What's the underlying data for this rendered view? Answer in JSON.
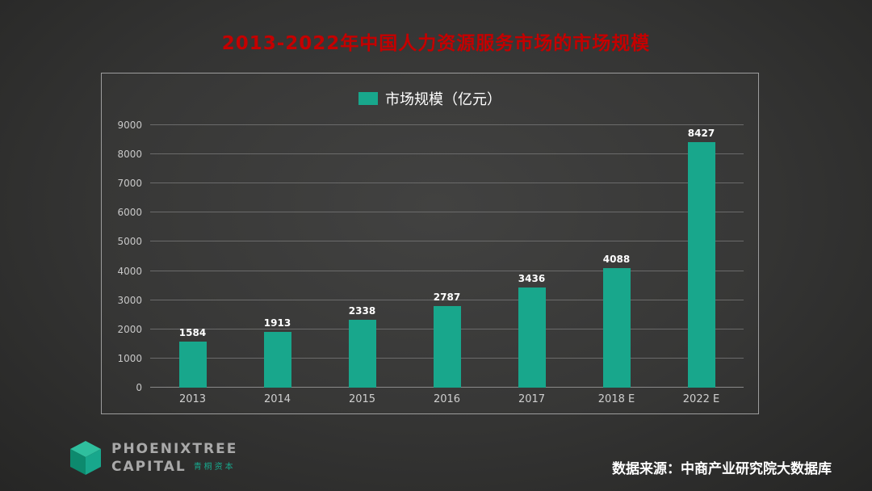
{
  "page": {
    "title": "2013-2022年中国人力资源服务市场的市场规模",
    "source": "数据来源：中商产业研究院大数据库"
  },
  "logo": {
    "line1": "PHOENIXTREE",
    "line2": "CAPITAL",
    "cn": "青桐资本"
  },
  "colors": {
    "title": "#c40000",
    "bar": "#18a78c",
    "cube_top": "#2fbf9e",
    "cube_left": "#0d8a6e",
    "cube_right": "#18a78c"
  },
  "chart_data": {
    "type": "bar",
    "legend": "市场规模（亿元）",
    "legend_position": "top",
    "categories": [
      "2013",
      "2014",
      "2015",
      "2016",
      "2017",
      "2018 E",
      "2022 E"
    ],
    "values": [
      1584,
      1913,
      2338,
      2787,
      3436,
      4088,
      8427
    ],
    "title": "",
    "xlabel": "",
    "ylabel": "",
    "ylim": [
      0,
      9000
    ],
    "ytick_step": 1000,
    "grid": true
  }
}
